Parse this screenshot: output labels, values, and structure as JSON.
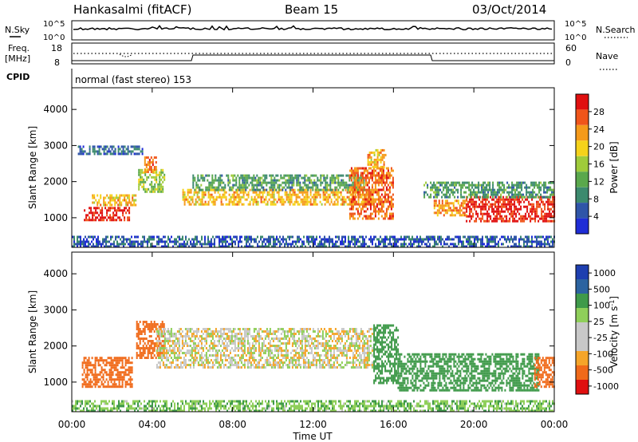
{
  "header": {
    "station": "Hankasalmi (fitACF)",
    "beam": "Beam 15",
    "date": "03/Oct/2014"
  },
  "noise_panel": {
    "left_label": "N.Sky",
    "left_ticks": [
      "10^5",
      "10^0"
    ],
    "right_label": "N.Search",
    "right_ticks": [
      "10^5",
      "10^0"
    ]
  },
  "freq_panel": {
    "left_label_1": "Freq.",
    "left_label_2": "[MHz]",
    "left_ticks": [
      "18",
      "8"
    ],
    "right_label": "Nave",
    "right_ticks": [
      "60",
      "0"
    ],
    "cpid_label": "CPID",
    "cpid_text": "normal (fast stereo) 153"
  },
  "colors": {
    "power_scale": [
      "#1f2dd6",
      "#2f55a8",
      "#3c8a6e",
      "#5aa84c",
      "#9fcb3b",
      "#f5d21a",
      "#f59a1a",
      "#f0551a",
      "#e01010"
    ],
    "velocity_scale": [
      "#e01010",
      "#f06a1a",
      "#f5a52a",
      "#c8c8c8",
      "#c8c8c8",
      "#8fcf5a",
      "#3f9a4a",
      "#2c63a0",
      "#1e3fb0"
    ]
  },
  "chart_data": [
    {
      "type": "heatmap",
      "name": "power-panel",
      "ylabel": "Slant Range [km]",
      "xlim": [
        0,
        24
      ],
      "ylim": [
        180,
        4600
      ],
      "yticks": [
        "1000",
        "2000",
        "3000",
        "4000"
      ],
      "colorbar": {
        "label": "Power [dB]",
        "ticks": [
          "4",
          "8",
          "12",
          "16",
          "20",
          "24",
          "28"
        ],
        "range": [
          0,
          30
        ]
      },
      "echo_regions": [
        {
          "t": [
            0.6,
            2.9
          ],
          "r": [
            950,
            1300
          ],
          "level": 28
        },
        {
          "t": [
            1.0,
            3.2
          ],
          "r": [
            1350,
            1650
          ],
          "level": 20
        },
        {
          "t": [
            3.3,
            4.6
          ],
          "r": [
            1700,
            2350
          ],
          "level": 14
        },
        {
          "t": [
            3.6,
            4.2
          ],
          "r": [
            2300,
            2700
          ],
          "level": 24
        },
        {
          "t": [
            0.3,
            3.5
          ],
          "r": [
            2750,
            3000
          ],
          "level": 6
        },
        {
          "t": [
            5.5,
            15.0
          ],
          "r": [
            1400,
            1800
          ],
          "level": 20
        },
        {
          "t": [
            6.0,
            14.5
          ],
          "r": [
            1800,
            2200
          ],
          "level": 10
        },
        {
          "t": [
            13.8,
            16.0
          ],
          "r": [
            1000,
            2400
          ],
          "level": 24
        },
        {
          "t": [
            14.7,
            15.6
          ],
          "r": [
            2400,
            2900
          ],
          "level": 20
        },
        {
          "t": [
            18.0,
            19.6
          ],
          "r": [
            1100,
            1500
          ],
          "level": 22
        },
        {
          "t": [
            19.6,
            24.0
          ],
          "r": [
            900,
            1600
          ],
          "level": 28
        },
        {
          "t": [
            17.5,
            24.0
          ],
          "r": [
            1600,
            2000
          ],
          "level": 10
        },
        {
          "t": [
            0.0,
            24.0
          ],
          "r": [
            180,
            500
          ],
          "level": 5
        }
      ]
    },
    {
      "type": "heatmap",
      "name": "velocity-panel",
      "ylabel": "Slant Range [km]",
      "xlabel": "Time UT",
      "xlim": [
        0,
        24
      ],
      "ylim": [
        180,
        4600
      ],
      "yticks": [
        "1000",
        "2000",
        "3000",
        "4000"
      ],
      "xticks": [
        "00:00",
        "04:00",
        "08:00",
        "12:00",
        "16:00",
        "20:00",
        "00:00"
      ],
      "colorbar": {
        "label": "Velocity [m s",
        "label_sup": "-1",
        "label_end": "]",
        "ticks": [
          "1000",
          "500",
          "100",
          "25",
          "-25",
          "-100",
          "-500",
          "-1000"
        ],
        "range": [
          -1000,
          1000
        ]
      },
      "echo_regions": [
        {
          "t": [
            0.5,
            3.0
          ],
          "r": [
            900,
            1700
          ],
          "level": -300
        },
        {
          "t": [
            3.2,
            4.6
          ],
          "r": [
            1700,
            2700
          ],
          "level": -200
        },
        {
          "t": [
            4.2,
            15.0
          ],
          "r": [
            1400,
            2500
          ],
          "level": 0
        },
        {
          "t": [
            15.0,
            16.2
          ],
          "r": [
            1000,
            2600
          ],
          "level": 300
        },
        {
          "t": [
            16.2,
            23.2
          ],
          "r": [
            800,
            1800
          ],
          "level": 200
        },
        {
          "t": [
            23.0,
            24.0
          ],
          "r": [
            900,
            1700
          ],
          "level": -300
        },
        {
          "t": [
            0.0,
            24.0
          ],
          "r": [
            180,
            500
          ],
          "level": 80
        }
      ]
    }
  ]
}
